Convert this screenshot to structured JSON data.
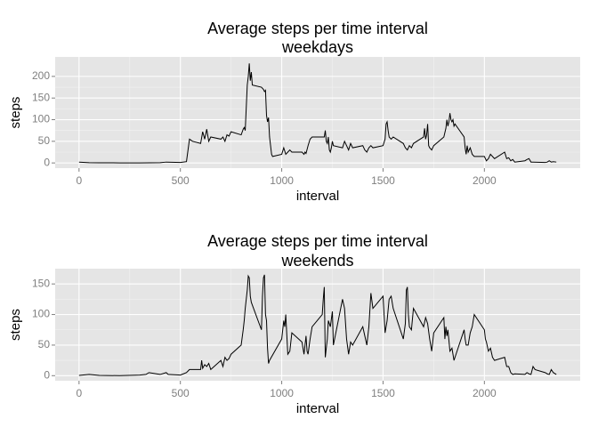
{
  "chart_data": [
    {
      "type": "line",
      "title": "Average steps per time interval",
      "subtitle": "weekdays",
      "xlabel": "interval",
      "ylabel": "steps",
      "color": "#000000",
      "grid": true,
      "xlim": [
        -117.75,
        2472.75
      ],
      "xticks": [
        0,
        500,
        1000,
        1500,
        2000
      ],
      "ylim": [
        -12,
        245
      ],
      "yticks": [
        0,
        50,
        100,
        150,
        200
      ],
      "x": [
        0,
        50,
        100,
        200,
        300,
        400,
        430,
        500,
        530,
        545,
        560,
        600,
        610,
        620,
        630,
        640,
        650,
        700,
        710,
        720,
        730,
        740,
        750,
        800,
        810,
        815,
        820,
        830,
        835,
        840,
        845,
        850,
        855,
        900,
        910,
        915,
        920,
        925,
        930,
        935,
        940,
        945,
        950,
        955,
        1000,
        1010,
        1020,
        1030,
        1040,
        1050,
        1100,
        1110,
        1115,
        1120,
        1130,
        1140,
        1150,
        1200,
        1210,
        1215,
        1220,
        1225,
        1230,
        1235,
        1240,
        1245,
        1250,
        1255,
        1300,
        1310,
        1320,
        1330,
        1340,
        1350,
        1400,
        1410,
        1420,
        1430,
        1440,
        1450,
        1500,
        1510,
        1515,
        1520,
        1525,
        1530,
        1540,
        1550,
        1600,
        1610,
        1620,
        1630,
        1640,
        1650,
        1700,
        1705,
        1710,
        1715,
        1720,
        1725,
        1730,
        1740,
        1750,
        1800,
        1810,
        1815,
        1820,
        1825,
        1830,
        1835,
        1840,
        1845,
        1850,
        1855,
        1900,
        1905,
        1910,
        1915,
        1920,
        1930,
        1940,
        1950,
        2000,
        2010,
        2020,
        2030,
        2040,
        2050,
        2100,
        2110,
        2120,
        2130,
        2140,
        2150,
        2200,
        2210,
        2220,
        2230,
        2240,
        2300,
        2310,
        2320,
        2330,
        2340,
        2355
      ],
      "values": [
        2,
        0.5,
        0.3,
        0.2,
        0.1,
        0.5,
        2,
        1,
        3,
        55,
        50,
        45,
        72,
        55,
        78,
        50,
        60,
        55,
        60,
        50,
        65,
        62,
        72,
        65,
        78,
        82,
        75,
        180,
        200,
        230,
        190,
        210,
        180,
        175,
        170,
        165,
        168,
        110,
        95,
        105,
        60,
        40,
        20,
        15,
        20,
        35,
        20,
        25,
        30,
        25,
        25,
        20,
        25,
        22,
        40,
        55,
        60,
        60,
        60,
        75,
        50,
        45,
        60,
        30,
        25,
        35,
        50,
        40,
        35,
        50,
        40,
        30,
        45,
        35,
        40,
        30,
        25,
        35,
        40,
        35,
        40,
        55,
        90,
        95,
        75,
        60,
        55,
        60,
        45,
        35,
        30,
        40,
        35,
        45,
        60,
        80,
        55,
        65,
        90,
        40,
        35,
        30,
        40,
        60,
        80,
        100,
        85,
        95,
        115,
        100,
        95,
        100,
        85,
        90,
        60,
        35,
        20,
        40,
        25,
        35,
        20,
        15,
        15,
        5,
        10,
        20,
        15,
        10,
        25,
        10,
        12,
        5,
        8,
        2,
        5,
        8,
        10,
        2,
        2,
        1,
        2,
        5,
        2,
        3,
        2
      ]
    },
    {
      "type": "line",
      "title": "Average steps per time interval",
      "subtitle": "weekends",
      "xlabel": "interval",
      "ylabel": "steps",
      "color": "#000000",
      "grid": true,
      "xlim": [
        -117.75,
        2472.75
      ],
      "xticks": [
        0,
        500,
        1000,
        1500,
        2000
      ],
      "ylim": [
        -8.3,
        175
      ],
      "yticks": [
        0,
        50,
        100,
        150
      ],
      "x": [
        0,
        50,
        100,
        200,
        300,
        330,
        345,
        400,
        430,
        440,
        500,
        530,
        545,
        600,
        605,
        610,
        620,
        630,
        640,
        650,
        700,
        710,
        720,
        730,
        740,
        750,
        800,
        810,
        815,
        820,
        830,
        835,
        840,
        845,
        850,
        900,
        905,
        910,
        915,
        920,
        925,
        930,
        935,
        940,
        1000,
        1010,
        1015,
        1020,
        1030,
        1040,
        1050,
        1100,
        1110,
        1120,
        1125,
        1130,
        1140,
        1150,
        1200,
        1205,
        1210,
        1215,
        1220,
        1225,
        1230,
        1240,
        1250,
        1255,
        1300,
        1310,
        1320,
        1330,
        1340,
        1350,
        1400,
        1410,
        1420,
        1430,
        1440,
        1450,
        1500,
        1510,
        1520,
        1530,
        1540,
        1550,
        1600,
        1610,
        1615,
        1620,
        1625,
        1630,
        1640,
        1650,
        1700,
        1710,
        1720,
        1730,
        1740,
        1750,
        1800,
        1805,
        1810,
        1815,
        1820,
        1830,
        1840,
        1850,
        1900,
        1905,
        1910,
        1920,
        1930,
        1940,
        1950,
        2000,
        2005,
        2010,
        2020,
        2030,
        2040,
        2050,
        2100,
        2110,
        2120,
        2130,
        2140,
        2150,
        2200,
        2210,
        2220,
        2230,
        2240,
        2250,
        2300,
        2310,
        2320,
        2330,
        2340,
        2355
      ],
      "values": [
        0.5,
        2,
        0.5,
        0,
        1,
        2,
        5,
        2,
        5,
        2,
        1,
        5,
        10,
        10,
        25,
        12,
        18,
        15,
        20,
        10,
        25,
        15,
        30,
        25,
        28,
        35,
        50,
        75,
        90,
        110,
        140,
        163,
        160,
        130,
        120,
        75,
        130,
        160,
        165,
        100,
        90,
        45,
        20,
        25,
        60,
        90,
        80,
        100,
        35,
        40,
        70,
        55,
        35,
        65,
        40,
        35,
        60,
        80,
        100,
        125,
        145,
        30,
        45,
        60,
        90,
        80,
        105,
        50,
        125,
        110,
        60,
        35,
        55,
        50,
        80,
        65,
        50,
        80,
        135,
        110,
        130,
        70,
        90,
        125,
        130,
        110,
        60,
        85,
        140,
        145,
        100,
        80,
        75,
        110,
        80,
        95,
        85,
        60,
        40,
        70,
        95,
        60,
        80,
        65,
        75,
        40,
        45,
        25,
        75,
        60,
        50,
        50,
        70,
        80,
        100,
        75,
        60,
        55,
        40,
        45,
        30,
        25,
        30,
        15,
        15,
        5,
        2,
        3,
        2,
        5,
        3,
        2,
        15,
        10,
        5,
        3,
        2,
        10,
        5,
        2
      ]
    }
  ]
}
